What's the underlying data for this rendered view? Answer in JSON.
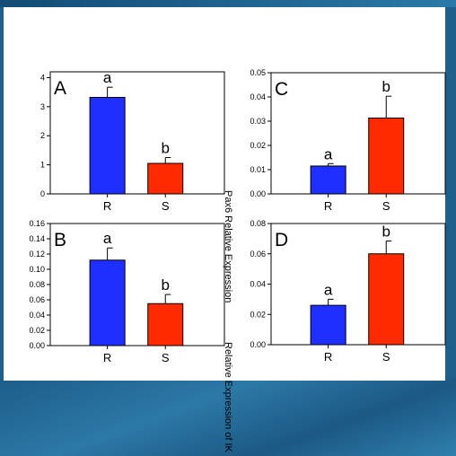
{
  "shared_ylabels": {
    "upper": "Pax6 Relative Expression",
    "lower": "Relative Expression of IK"
  },
  "chart_data": [
    {
      "type": "bar",
      "panel": "A",
      "categories": [
        "R",
        "S"
      ],
      "values": [
        3.32,
        1.05
      ],
      "errors": [
        0.35,
        0.2
      ],
      "letters": [
        "a",
        "b"
      ],
      "ylim": [
        0,
        4.2
      ],
      "yticks": [
        0,
        1,
        2,
        3,
        4
      ],
      "ytick_labels": [
        "0",
        "1",
        "2",
        "3",
        "4"
      ],
      "colors": [
        "#1f2fff",
        "#ff2a00"
      ],
      "grid": false
    },
    {
      "type": "bar",
      "panel": "B",
      "categories": [
        "R",
        "S"
      ],
      "values": [
        0.112,
        0.055
      ],
      "errors": [
        0.016,
        0.012
      ],
      "letters": [
        "a",
        "b"
      ],
      "ylim": [
        0,
        0.16
      ],
      "yticks": [
        0,
        0.02,
        0.04,
        0.06,
        0.08,
        0.1,
        0.12,
        0.14,
        0.16
      ],
      "ytick_labels": [
        "0.00",
        "0.02",
        "0.04",
        "0.06",
        "0.08",
        "0.10",
        "0.12",
        "0.14",
        "0.16"
      ],
      "colors": [
        "#1f2fff",
        "#ff2a00"
      ],
      "grid": false
    },
    {
      "type": "bar",
      "panel": "C",
      "categories": [
        "R",
        "S"
      ],
      "values": [
        0.0115,
        0.0313
      ],
      "errors": [
        0.001,
        0.009
      ],
      "letters": [
        "a",
        "b"
      ],
      "ylim": [
        0,
        0.05
      ],
      "yticks": [
        0,
        0.01,
        0.02,
        0.03,
        0.04,
        0.05
      ],
      "ytick_labels": [
        "0.00",
        "0.01",
        "0.02",
        "0.03",
        "0.04",
        "0.05"
      ],
      "colors": [
        "#1f2fff",
        "#ff2a00"
      ],
      "grid": false
    },
    {
      "type": "bar",
      "panel": "D",
      "categories": [
        "R",
        "S"
      ],
      "values": [
        0.026,
        0.06
      ],
      "errors": [
        0.004,
        0.0085
      ],
      "letters": [
        "a",
        "b"
      ],
      "ylim": [
        0,
        0.08
      ],
      "yticks": [
        0,
        0.02,
        0.04,
        0.06,
        0.08
      ],
      "ytick_labels": [
        "0.00",
        "0.02",
        "0.04",
        "0.06",
        "0.08"
      ],
      "colors": [
        "#1f2fff",
        "#ff2a00"
      ],
      "grid": false
    }
  ]
}
